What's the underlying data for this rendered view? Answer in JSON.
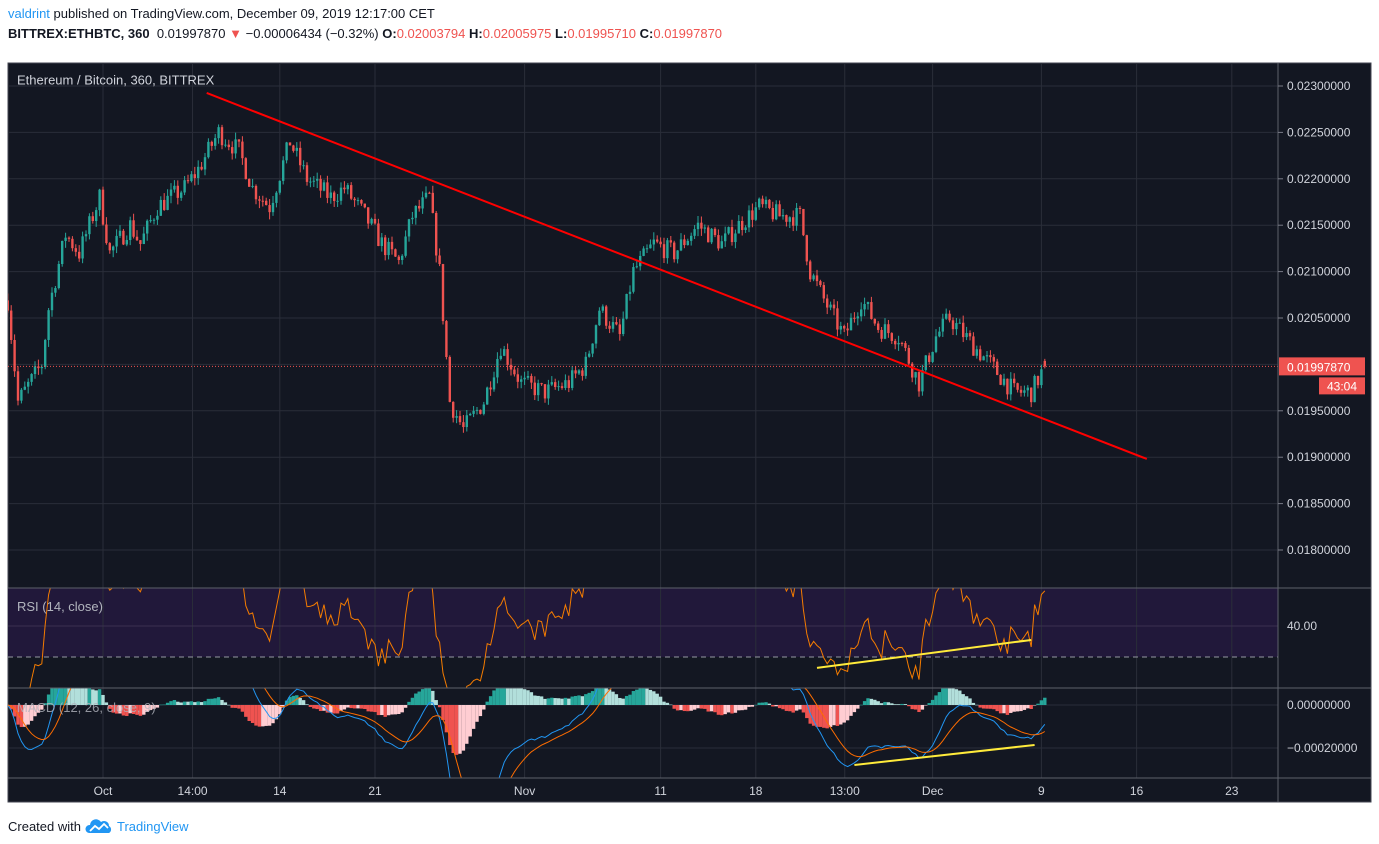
{
  "header": {
    "user": "valdrint",
    "published": "published on TradingView.com, December 09, 2019 12:17:00 CET",
    "symbol": "BITTREX:ETHBTC, 360",
    "last": "0.01997870",
    "change": "−0.00006434 (−0.32%)",
    "o_label": "O:",
    "o": "0.02003794",
    "h_label": "H:",
    "h": "0.02005975",
    "l_label": "L:",
    "l": "0.01995710",
    "c_label": "C:",
    "c": "0.01997870",
    "direction_icon": "triangle-down-icon"
  },
  "footer": {
    "created_with": "Created with",
    "brand": "TradingView",
    "logo_icon": "tradingview-cloud-icon"
  },
  "colors": {
    "background": "#131722",
    "grid": "#2a2e39",
    "up": "#26a69a",
    "down": "#ef5350",
    "trendline": "#ff0000",
    "divergence": "#ffeb3b",
    "rsi": "#f57c00",
    "rsi_band": "#21183a",
    "macd": "#2196f3",
    "signal": "#ff6d00"
  },
  "chart_data": {
    "type": "candlestick",
    "title": "Ethereum / Bitcoin, 360, BITTREX",
    "timeframe_minutes": 360,
    "y_ticks": [
      "0.02300000",
      "0.02250000",
      "0.02200000",
      "0.02150000",
      "0.02100000",
      "0.02050000",
      "0.01950000",
      "0.01900000",
      "0.01850000",
      "0.01800000"
    ],
    "ylim": [
      0.01765,
      0.02322
    ],
    "x_ticks": [
      {
        "label": "Oct",
        "t": "2019-10-01T00:00"
      },
      {
        "label": "14:00",
        "t": "2019-10-07T14:00"
      },
      {
        "label": "14",
        "t": "2019-10-14T00:00"
      },
      {
        "label": "21",
        "t": "2019-10-21T00:00"
      },
      {
        "label": "Nov",
        "t": "2019-11-01T00:00"
      },
      {
        "label": "11",
        "t": "2019-11-11T00:00"
      },
      {
        "label": "18",
        "t": "2019-11-18T00:00"
      },
      {
        "label": "13:00",
        "t": "2019-11-24T13:00"
      },
      {
        "label": "Dec",
        "t": "2019-12-01T00:00"
      },
      {
        "label": "9",
        "t": "2019-12-09T00:00"
      },
      {
        "label": "16",
        "t": "2019-12-16T00:00"
      },
      {
        "label": "23",
        "t": "2019-12-23T00:00"
      }
    ],
    "last_price_label": "0.01997870",
    "countdown_label": "43:04",
    "approx_close_path": [
      [
        "2019-09-24T00:00",
        0.02069
      ],
      [
        "2019-09-24T18:00",
        0.0196
      ],
      [
        "2019-09-26T12:00",
        0.02
      ],
      [
        "2019-09-27T00:00",
        0.0206
      ],
      [
        "2019-09-28T06:00",
        0.0214
      ],
      [
        "2019-09-29T06:00",
        0.0212
      ],
      [
        "2019-09-30T18:00",
        0.0218
      ],
      [
        "2019-10-01T12:00",
        0.0212
      ],
      [
        "2019-10-03T00:00",
        0.0215
      ],
      [
        "2019-10-03T18:00",
        0.0213
      ],
      [
        "2019-10-05T00:00",
        0.0217
      ],
      [
        "2019-10-07T00:00",
        0.0219
      ],
      [
        "2019-10-08T00:00",
        0.0221
      ],
      [
        "2019-10-09T12:00",
        0.0225
      ],
      [
        "2019-10-11T00:00",
        0.0223
      ],
      [
        "2019-10-12T00:00",
        0.0219
      ],
      [
        "2019-10-13T06:00",
        0.0217
      ],
      [
        "2019-10-14T18:00",
        0.0224
      ],
      [
        "2019-10-16T00:00",
        0.022
      ],
      [
        "2019-10-17T18:00",
        0.0218
      ],
      [
        "2019-10-18T18:00",
        0.0219
      ],
      [
        "2019-10-20T06:00",
        0.0216
      ],
      [
        "2019-10-21T12:00",
        0.0213
      ],
      [
        "2019-10-22T18:00",
        0.0211
      ],
      [
        "2019-10-23T18:00",
        0.0216
      ],
      [
        "2019-10-25T00:00",
        0.0218
      ],
      [
        "2019-10-25T18:00",
        0.021
      ],
      [
        "2019-10-26T12:00",
        0.0196
      ],
      [
        "2019-10-27T12:00",
        0.0193
      ],
      [
        "2019-10-29T00:00",
        0.0196
      ],
      [
        "2019-10-30T06:00",
        0.0202
      ],
      [
        "2019-10-31T18:00",
        0.0198
      ],
      [
        "2019-11-02T12:00",
        0.0197
      ],
      [
        "2019-11-04T06:00",
        0.0198
      ],
      [
        "2019-11-05T12:00",
        0.02
      ],
      [
        "2019-11-06T12:00",
        0.0206
      ],
      [
        "2019-11-08T00:00",
        0.0203
      ],
      [
        "2019-11-09T00:00",
        0.021
      ],
      [
        "2019-11-10T12:00",
        0.0213
      ],
      [
        "2019-11-12T00:00",
        0.0212
      ],
      [
        "2019-11-13T18:00",
        0.0215
      ],
      [
        "2019-11-15T12:00",
        0.0213
      ],
      [
        "2019-11-16T18:00",
        0.0215
      ],
      [
        "2019-11-18T06:00",
        0.0217
      ],
      [
        "2019-11-19T18:00",
        0.0216
      ],
      [
        "2019-11-21T06:00",
        0.0216
      ],
      [
        "2019-11-22T00:00",
        0.021
      ],
      [
        "2019-11-23T00:00",
        0.0207
      ],
      [
        "2019-11-24T12:00",
        0.0203
      ],
      [
        "2019-11-25T18:00",
        0.0207
      ],
      [
        "2019-11-27T00:00",
        0.0204
      ],
      [
        "2019-11-28T12:00",
        0.0203
      ],
      [
        "2019-11-30T00:00",
        0.0198
      ],
      [
        "2019-12-01T06:00",
        0.0203
      ],
      [
        "2019-12-02T06:00",
        0.0205
      ],
      [
        "2019-12-04T00:00",
        0.0202
      ],
      [
        "2019-12-05T06:00",
        0.02
      ],
      [
        "2019-12-07T00:00",
        0.0197
      ],
      [
        "2019-12-08T06:00",
        0.0197
      ],
      [
        "2019-12-09T06:00",
        0.0199787
      ]
    ],
    "trendline": {
      "from": [
        "2019-10-08T15:00",
        0.022925
      ],
      "to": [
        "2019-12-16T18:00",
        0.018981
      ]
    },
    "rsi": {
      "label": "RSI (14, close)",
      "period": 14,
      "tick": "40.00",
      "levels": [
        30,
        70
      ],
      "ylim": [
        20,
        52.3
      ],
      "divergence_line": {
        "from": [
          "2019-11-22T12:00",
          26.5
        ],
        "to": [
          "2019-12-08T06:00",
          35.5
        ]
      }
    },
    "macd": {
      "label": "MACD (12, 26, close, 9)",
      "fast": 12,
      "slow": 26,
      "signal": 9,
      "ticks": [
        "0.00000000",
        "−0.00020000"
      ],
      "ylim": [
        -0.00034,
        8e-05
      ],
      "divergence_line": {
        "from": [
          "2019-11-25T06:00",
          -0.000279
        ],
        "to": [
          "2019-12-08T12:00",
          -0.000186
        ]
      }
    }
  }
}
